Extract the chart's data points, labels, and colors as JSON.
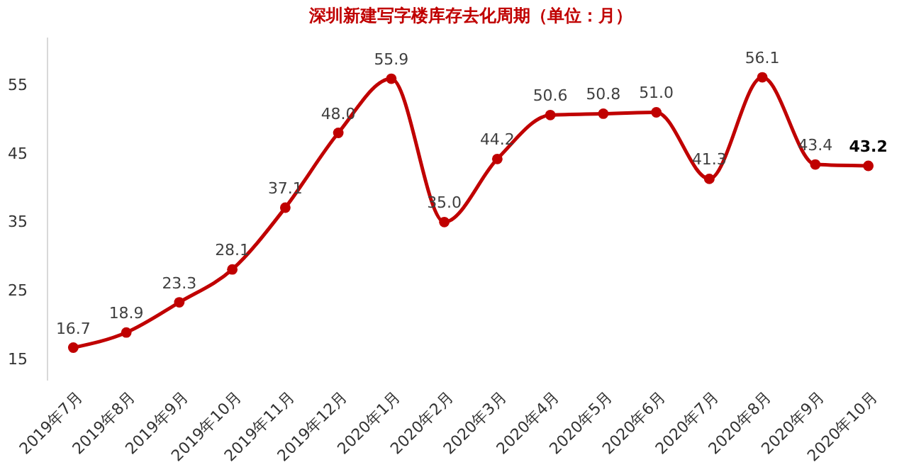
{
  "chart_data": {
    "type": "line",
    "title": "深圳新建写字楼库存去化周期（单位：月）",
    "categories": [
      "2019年7月",
      "2019年8月",
      "2019年9月",
      "2019年10月",
      "2019年11月",
      "2019年12月",
      "2020年1月",
      "2020年2月",
      "2020年3月",
      "2020年4月",
      "2020年5月",
      "2020年6月",
      "2020年7月",
      "2020年8月",
      "2020年9月",
      "2020年10月"
    ],
    "series": [
      {
        "color": "#c00000",
        "values": [
          16.7,
          18.9,
          23.3,
          28.1,
          37.1,
          48.0,
          55.9,
          35.0,
          44.2,
          50.6,
          50.8,
          51.0,
          41.3,
          56.1,
          43.4,
          43.2
        ],
        "value_labels": [
          "16.7",
          "18.9",
          "23.3",
          "28.1",
          "37.1",
          "48.0",
          "55.9",
          "35.0",
          "44.2",
          "50.6",
          "50.8",
          "51.0",
          "41.3",
          "56.1",
          "43.4",
          "43.2"
        ]
      }
    ],
    "ylim": [
      12,
      62
    ],
    "yticks": [
      15,
      25,
      35,
      45,
      55
    ],
    "grid": false,
    "marker": "circle",
    "line_style": "solid"
  }
}
